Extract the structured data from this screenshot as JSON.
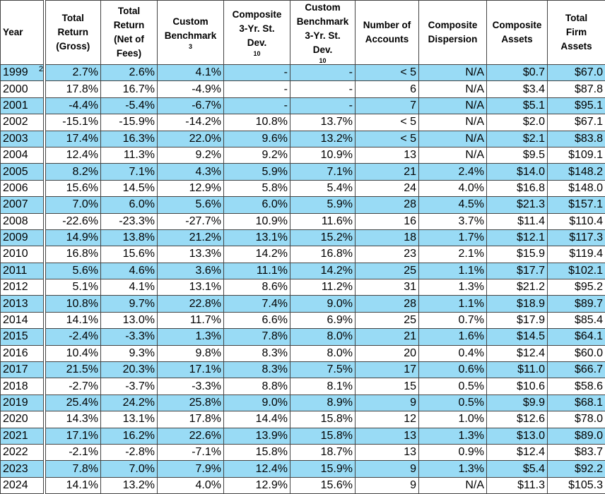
{
  "table": {
    "columns": [
      {
        "lines": [
          "Year"
        ]
      },
      {
        "lines": [
          "Total",
          "Return",
          "(Gross)"
        ]
      },
      {
        "lines": [
          "Total",
          "Return",
          "(Net of",
          "Fees)"
        ]
      },
      {
        "lines": [
          "Custom",
          "Benchmark"
        ],
        "note": "3"
      },
      {
        "lines": [
          "Composite",
          "3-Yr. St.",
          "Dev."
        ],
        "note": "10"
      },
      {
        "lines": [
          "Custom",
          "Benchmark",
          "3-Yr. St.",
          "Dev."
        ],
        "note": "10"
      },
      {
        "lines": [
          "Number of",
          "Accounts"
        ]
      },
      {
        "lines": [
          "Composite",
          "Dispersion"
        ]
      },
      {
        "lines": [
          "Composite",
          "Assets"
        ]
      },
      {
        "lines": [
          "Total",
          "Firm",
          "Assets"
        ]
      }
    ],
    "rows": [
      {
        "year": "1999",
        "note": "2",
        "values": [
          "2.7%",
          "2.6%",
          "4.1%",
          "-",
          "-",
          "< 5",
          "N/A",
          "$0.7",
          "$67.0"
        ]
      },
      {
        "year": "2000",
        "values": [
          "17.8%",
          "16.7%",
          "-4.9%",
          "-",
          "-",
          "6",
          "N/A",
          "$3.4",
          "$87.8"
        ]
      },
      {
        "year": "2001",
        "values": [
          "-4.4%",
          "-5.4%",
          "-6.7%",
          "-",
          "-",
          "7",
          "N/A",
          "$5.1",
          "$95.1"
        ]
      },
      {
        "year": "2002",
        "values": [
          "-15.1%",
          "-15.9%",
          "-14.2%",
          "10.8%",
          "13.7%",
          "< 5",
          "N/A",
          "$2.0",
          "$67.1"
        ]
      },
      {
        "year": "2003",
        "values": [
          "17.4%",
          "16.3%",
          "22.0%",
          "9.6%",
          "13.2%",
          "< 5",
          "N/A",
          "$2.1",
          "$83.8"
        ]
      },
      {
        "year": "2004",
        "values": [
          "12.4%",
          "11.3%",
          "9.2%",
          "9.2%",
          "10.9%",
          "13",
          "N/A",
          "$9.5",
          "$109.1"
        ]
      },
      {
        "year": "2005",
        "values": [
          "8.2%",
          "7.1%",
          "4.3%",
          "5.9%",
          "7.1%",
          "21",
          "2.4%",
          "$14.0",
          "$148.2"
        ]
      },
      {
        "year": "2006",
        "values": [
          "15.6%",
          "14.5%",
          "12.9%",
          "5.8%",
          "5.4%",
          "24",
          "4.0%",
          "$16.8",
          "$148.0"
        ]
      },
      {
        "year": "2007",
        "values": [
          "7.0%",
          "6.0%",
          "5.6%",
          "6.0%",
          "5.9%",
          "28",
          "4.5%",
          "$21.3",
          "$157.1"
        ]
      },
      {
        "year": "2008",
        "values": [
          "-22.6%",
          "-23.3%",
          "-27.7%",
          "10.9%",
          "11.6%",
          "16",
          "3.7%",
          "$11.4",
          "$110.4"
        ]
      },
      {
        "year": "2009",
        "values": [
          "14.9%",
          "13.8%",
          "21.2%",
          "13.1%",
          "15.2%",
          "18",
          "1.7%",
          "$12.1",
          "$117.3"
        ]
      },
      {
        "year": "2010",
        "values": [
          "16.8%",
          "15.6%",
          "13.3%",
          "14.2%",
          "16.8%",
          "23",
          "2.1%",
          "$15.9",
          "$119.4"
        ]
      },
      {
        "year": "2011",
        "values": [
          "5.6%",
          "4.6%",
          "3.6%",
          "11.1%",
          "14.2%",
          "25",
          "1.1%",
          "$17.7",
          "$102.1"
        ]
      },
      {
        "year": "2012",
        "values": [
          "5.1%",
          "4.1%",
          "13.1%",
          "8.6%",
          "11.2%",
          "31",
          "1.3%",
          "$21.2",
          "$95.2"
        ]
      },
      {
        "year": "2013",
        "values": [
          "10.8%",
          "9.7%",
          "22.8%",
          "7.4%",
          "9.0%",
          "28",
          "1.1%",
          "$18.9",
          "$89.7"
        ]
      },
      {
        "year": "2014",
        "values": [
          "14.1%",
          "13.0%",
          "11.7%",
          "6.6%",
          "6.9%",
          "25",
          "0.7%",
          "$17.9",
          "$85.4"
        ]
      },
      {
        "year": "2015",
        "values": [
          "-2.4%",
          "-3.3%",
          "1.3%",
          "7.8%",
          "8.0%",
          "21",
          "1.6%",
          "$14.5",
          "$64.1"
        ]
      },
      {
        "year": "2016",
        "values": [
          "10.4%",
          "9.3%",
          "9.8%",
          "8.3%",
          "8.0%",
          "20",
          "0.4%",
          "$12.4",
          "$60.0"
        ]
      },
      {
        "year": "2017",
        "values": [
          "21.5%",
          "20.3%",
          "17.1%",
          "8.3%",
          "7.5%",
          "17",
          "0.6%",
          "$11.0",
          "$66.7"
        ]
      },
      {
        "year": "2018",
        "values": [
          "-2.7%",
          "-3.7%",
          "-3.3%",
          "8.8%",
          "8.1%",
          "15",
          "0.5%",
          "$10.6",
          "$58.6"
        ]
      },
      {
        "year": "2019",
        "values": [
          "25.4%",
          "24.2%",
          "25.8%",
          "9.0%",
          "8.9%",
          "9",
          "0.5%",
          "$9.9",
          "$68.1"
        ]
      },
      {
        "year": "2020",
        "values": [
          "14.3%",
          "13.1%",
          "17.8%",
          "14.4%",
          "15.8%",
          "12",
          "1.0%",
          "$12.6",
          "$78.0"
        ]
      },
      {
        "year": "2021",
        "values": [
          "17.1%",
          "16.2%",
          "22.6%",
          "13.9%",
          "15.8%",
          "13",
          "1.3%",
          "$13.0",
          "$89.0"
        ]
      },
      {
        "year": "2022",
        "values": [
          "-2.1%",
          "-2.8%",
          "-7.1%",
          "15.8%",
          "18.7%",
          "13",
          "0.9%",
          "$12.4",
          "$83.7"
        ]
      },
      {
        "year": "2023",
        "values": [
          "7.8%",
          "7.0%",
          "7.9%",
          "12.4%",
          "15.9%",
          "9",
          "1.3%",
          "$5.4",
          "$92.2"
        ]
      },
      {
        "year": "2024",
        "values": [
          "14.1%",
          "13.2%",
          "4.0%",
          "12.9%",
          "15.6%",
          "9",
          "N/A",
          "$11.3",
          "$105.3"
        ]
      }
    ]
  }
}
